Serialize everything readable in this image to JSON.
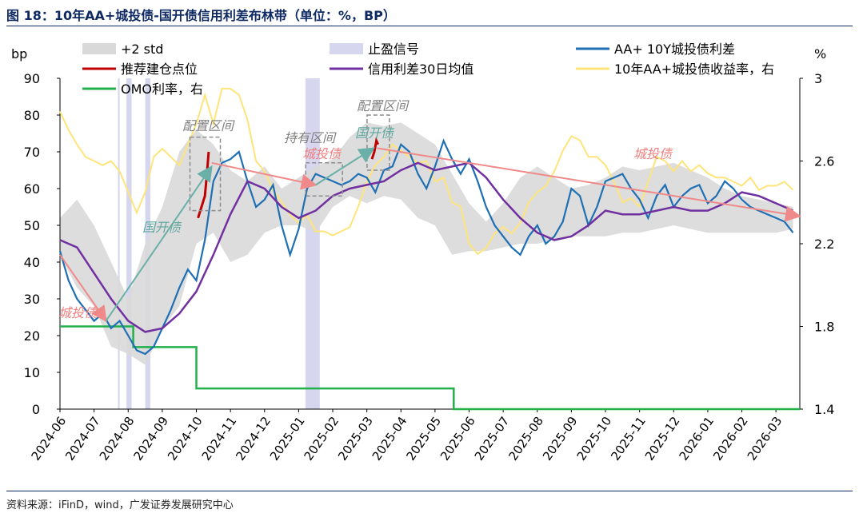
{
  "header": {
    "title": "图 18：10年AA+城投债-国开债信用利差布林带（单位：%，BP）",
    "source": "资料来源：iFinD，wind，广发证券发展研究中心"
  },
  "chart_data": {
    "type": "line",
    "title": "图 18：10年AA+城投债-国开债信用利差布林带（单位：%，BP）",
    "y_left": {
      "label": "bp",
      "lim": [
        0,
        90
      ],
      "ticks": [
        0,
        10,
        20,
        30,
        40,
        50,
        60,
        70,
        80,
        90
      ]
    },
    "y_right": {
      "label": "%",
      "lim": [
        1.4,
        3.0
      ],
      "ticks": [
        "1.4",
        "1.8",
        "2.2",
        "2.6",
        "3"
      ]
    },
    "x_ticks": [
      "2024-06",
      "2024-07",
      "2024-08",
      "2024-09",
      "2024-10",
      "2024-11",
      "2024-12",
      "2025-01",
      "2025-02",
      "2025-03",
      "2025-04",
      "2025-05",
      "2025-06",
      "2025-07",
      "2025-08",
      "2025-09",
      "2025-10",
      "2025-11",
      "2025-12",
      "2026-01",
      "2026-02",
      "2026-03"
    ],
    "x_range_months": [
      0,
      21.7
    ],
    "legend": [
      {
        "name": "+2 std",
        "kind": "band",
        "color": "#d9d9d9"
      },
      {
        "name": "止盈信号",
        "kind": "bar",
        "color": "#d6d7ee"
      },
      {
        "name": "AA+ 10Y城投债利差",
        "kind": "line",
        "color": "#1f6fb4"
      },
      {
        "name": "推荐建仓点位",
        "kind": "line",
        "color": "#c00000"
      },
      {
        "name": "信用利差30日均值",
        "kind": "line",
        "color": "#7030a0"
      },
      {
        "name": "10年AA+城投债收益率，右",
        "kind": "line",
        "color": "#ffe47a"
      },
      {
        "name": "OMO利率，右",
        "kind": "line",
        "color": "#22b04b"
      }
    ],
    "band": {
      "x": [
        0,
        0.5,
        1,
        1.5,
        2,
        2.5,
        3,
        3.5,
        4,
        4.5,
        5,
        5.5,
        6,
        6.5,
        7,
        7.5,
        8,
        8.5,
        9,
        9.5,
        10,
        10.5,
        11,
        11.5,
        12,
        12.5,
        13,
        13.5,
        14,
        14.5,
        15,
        15.5,
        16,
        16.5,
        17,
        17.5,
        18,
        18.5,
        19,
        19.5,
        20,
        20.5,
        21,
        21.5
      ],
      "upper": [
        52,
        57,
        50,
        40,
        30,
        45,
        55,
        70,
        76,
        72,
        65,
        62,
        66,
        60,
        63,
        66,
        68,
        74,
        78,
        77,
        78,
        75,
        72,
        64,
        56,
        51,
        56,
        63,
        66,
        63,
        60,
        61,
        63,
        66,
        65,
        66,
        67,
        65,
        63,
        60,
        58,
        57,
        56,
        55
      ],
      "lower": [
        42,
        33,
        28,
        17,
        15,
        12,
        22,
        28,
        45,
        48,
        40,
        42,
        48,
        50,
        50,
        48,
        55,
        58,
        56,
        58,
        57,
        52,
        50,
        42,
        43,
        43,
        44,
        45,
        45,
        46,
        47,
        47,
        47,
        48,
        48,
        49,
        50,
        49,
        48,
        48,
        48,
        48,
        48,
        49
      ]
    },
    "shaded_periods": [
      [
        1.7,
        1.75
      ],
      [
        1.95,
        2.1
      ],
      [
        2.5,
        2.65
      ],
      [
        7.2,
        7.62
      ]
    ],
    "series_spread": {
      "name": "AA+ 10Y城投债利差",
      "x": [
        0,
        0.25,
        0.5,
        0.75,
        1,
        1.25,
        1.5,
        1.75,
        2,
        2.25,
        2.5,
        2.75,
        3,
        3.25,
        3.5,
        3.75,
        4,
        4.25,
        4.5,
        4.75,
        5,
        5.25,
        5.5,
        5.75,
        6,
        6.25,
        6.5,
        6.75,
        7,
        7.25,
        7.5,
        7.75,
        8,
        8.25,
        8.5,
        8.75,
        9,
        9.25,
        9.5,
        9.75,
        10,
        10.25,
        10.5,
        10.75,
        11,
        11.25,
        11.5,
        11.75,
        12,
        12.25,
        12.5,
        12.75,
        13,
        13.25,
        13.5,
        13.75,
        14,
        14.25,
        14.5,
        14.75,
        15,
        15.25,
        15.5,
        15.75,
        16,
        16.25,
        16.5,
        16.75,
        17,
        17.25,
        17.5,
        17.75,
        18,
        18.25,
        18.5,
        18.75,
        19,
        19.25,
        19.5,
        19.75,
        20,
        20.25,
        20.5,
        20.75,
        21,
        21.25,
        21.5
      ],
      "y": [
        43,
        35,
        30,
        27,
        24,
        26,
        22,
        24,
        20,
        16,
        15,
        17,
        22,
        27,
        33,
        38,
        35,
        46,
        62,
        67,
        68,
        70,
        62,
        55,
        57,
        61,
        50,
        42,
        49,
        60,
        64,
        63,
        62,
        61,
        62,
        64,
        63,
        59,
        65,
        66,
        72,
        70,
        64,
        60,
        66,
        73,
        68,
        64,
        68,
        62,
        55,
        50,
        47,
        44,
        42,
        47,
        50,
        45,
        47,
        51,
        60,
        58,
        50,
        55,
        62,
        63,
        64,
        60,
        57,
        52,
        58,
        61,
        55,
        58,
        60,
        61,
        56,
        58,
        62,
        60,
        57,
        55,
        54,
        53,
        52,
        51,
        48
      ]
    },
    "series_ma30": {
      "name": "信用利差30日均值",
      "x": [
        0,
        0.5,
        1,
        1.5,
        2,
        2.5,
        3,
        3.5,
        4,
        4.5,
        5,
        5.5,
        6,
        6.5,
        7,
        7.5,
        8,
        8.5,
        9,
        9.5,
        10,
        10.5,
        11,
        11.5,
        12,
        12.5,
        13,
        13.5,
        14,
        14.5,
        15,
        15.5,
        16,
        16.5,
        17,
        17.5,
        18,
        18.5,
        19,
        19.5,
        20,
        20.5,
        21,
        21.5
      ],
      "y": [
        46,
        44,
        37,
        30,
        24,
        21,
        22,
        26,
        32,
        42,
        53,
        62,
        60,
        55,
        52,
        54,
        58,
        60,
        61,
        62,
        65,
        67,
        65,
        66,
        67,
        63,
        57,
        52,
        48,
        46,
        47,
        50,
        54,
        53,
        53,
        54,
        55,
        54,
        54,
        56,
        59,
        58,
        56,
        54
      ]
    },
    "series_recommend": [
      {
        "x": [
          4.05,
          4.15,
          4.25,
          4.32,
          4.36
        ],
        "y": [
          52,
          55,
          58,
          65,
          70
        ]
      },
      {
        "x": [
          9.15,
          9.22,
          9.28,
          9.33
        ],
        "y": [
          68,
          70,
          73,
          72
        ]
      }
    ],
    "series_yield": {
      "name": "10年AA+城投债收益率，右",
      "x": [
        0,
        0.25,
        0.5,
        0.75,
        1,
        1.25,
        1.5,
        1.75,
        2,
        2.25,
        2.5,
        2.75,
        3,
        3.25,
        3.5,
        3.75,
        4,
        4.25,
        4.5,
        4.75,
        5,
        5.25,
        5.5,
        5.75,
        6,
        6.25,
        6.5,
        6.75,
        7,
        7.25,
        7.5,
        7.75,
        8,
        8.25,
        8.5,
        8.75,
        9,
        9.25,
        9.5,
        9.75,
        10,
        10.25,
        10.5,
        10.75,
        11,
        11.25,
        11.5,
        11.75,
        12,
        12.25,
        12.5,
        12.75,
        13,
        13.25,
        13.5,
        13.75,
        14,
        14.25,
        14.5,
        14.75,
        15,
        15.25,
        15.5,
        15.75,
        16,
        16.25,
        16.5,
        16.75,
        17,
        17.25,
        17.5,
        17.75,
        18,
        18.25,
        18.5,
        18.75,
        19,
        19.25,
        19.5,
        19.75,
        20,
        20.25,
        20.5,
        20.75,
        21,
        21.25,
        21.5
      ],
      "y": [
        2.84,
        2.75,
        2.68,
        2.62,
        2.6,
        2.58,
        2.6,
        2.55,
        2.45,
        2.35,
        2.45,
        2.62,
        2.66,
        2.62,
        2.58,
        2.68,
        2.78,
        2.92,
        2.78,
        2.95,
        2.95,
        2.92,
        2.8,
        2.6,
        2.55,
        2.46,
        2.4,
        2.34,
        2.3,
        2.34,
        2.26,
        2.26,
        2.24,
        2.26,
        2.28,
        2.38,
        2.5,
        2.58,
        2.62,
        2.68,
        2.65,
        2.62,
        2.59,
        2.6,
        2.5,
        2.52,
        2.4,
        2.38,
        2.2,
        2.15,
        2.18,
        2.25,
        2.28,
        2.25,
        2.3,
        2.4,
        2.45,
        2.48,
        2.55,
        2.65,
        2.72,
        2.7,
        2.62,
        2.62,
        2.58,
        2.5,
        2.4,
        2.42,
        2.38,
        2.5,
        2.62,
        2.6,
        2.55,
        2.6,
        2.55,
        2.58,
        2.54,
        2.52,
        2.52,
        2.5,
        2.48,
        2.52,
        2.46,
        2.48,
        2.48,
        2.5,
        2.46
      ]
    },
    "series_omo": {
      "name": "OMO利率，右",
      "steps": [
        [
          0,
          1.8
        ],
        [
          2.15,
          1.8
        ],
        [
          2.15,
          1.7
        ],
        [
          4.0,
          1.7
        ],
        [
          4.0,
          1.5
        ],
        [
          11.55,
          1.5
        ],
        [
          11.55,
          1.4
        ],
        [
          21.7,
          1.4
        ]
      ]
    },
    "annotations": [
      {
        "text": "城投债",
        "color": "#f08080"
      },
      {
        "text": "国开债",
        "color": "#5fa8a0"
      },
      {
        "text": "配置区间",
        "color": "#7f7f7f"
      },
      {
        "text": "持有区间",
        "color": "#7f7f7f"
      },
      {
        "text": "城投债",
        "color": "#f08080"
      },
      {
        "text": "配置区间",
        "color": "#7f7f7f"
      },
      {
        "text": "国开债",
        "color": "#5fa8a0"
      },
      {
        "text": "城投债",
        "color": "#f08080"
      }
    ]
  }
}
